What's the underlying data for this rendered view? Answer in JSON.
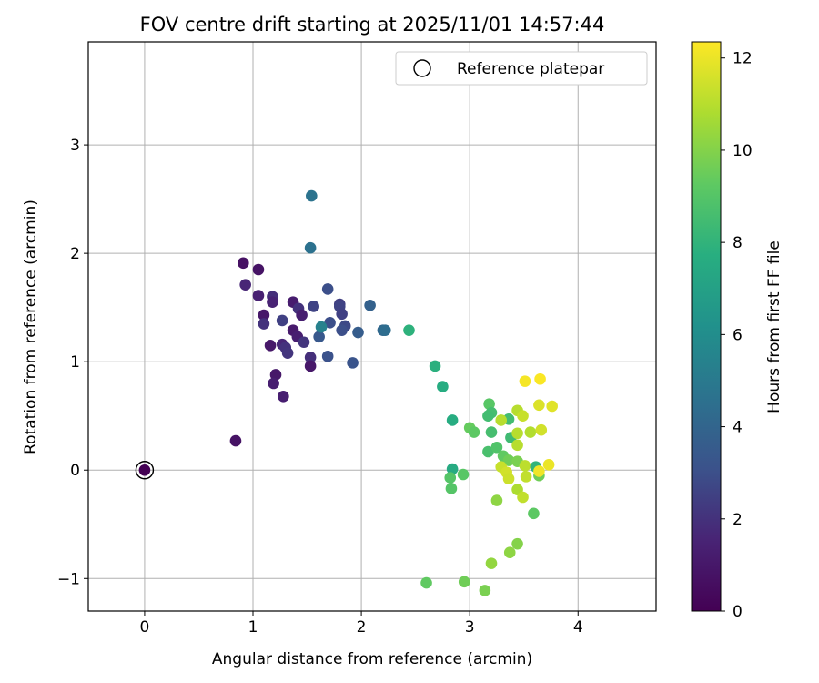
{
  "chart_data": {
    "type": "scatter",
    "title": "FOV centre drift starting at 2025/11/01 14:57:44",
    "xlabel": "Angular distance from reference (arcmin)",
    "ylabel": "Rotation from reference (arcmin)",
    "xlim": [
      -0.52,
      4.72
    ],
    "ylim": [
      -1.3,
      3.95
    ],
    "xticks": [
      0,
      1,
      2,
      3,
      4
    ],
    "xtick_labels": [
      "0",
      "1",
      "2",
      "3",
      "4"
    ],
    "yticks": [
      -1,
      0,
      1,
      2,
      3
    ],
    "ytick_labels": [
      "−1",
      "0",
      "1",
      "2",
      "3"
    ],
    "grid": true,
    "legend": {
      "location": "top-right",
      "entries": [
        "Reference platepar"
      ]
    },
    "colorbar": {
      "label": "Hours from first FF file",
      "colormap": "viridis",
      "range": [
        0,
        12.35
      ],
      "ticks": [
        0,
        2,
        4,
        6,
        8,
        10,
        12
      ],
      "tick_labels": [
        "0",
        "2",
        "4",
        "6",
        "8",
        "10",
        "12"
      ]
    },
    "reference_point": {
      "x": 0,
      "y": 0,
      "hours": 0
    },
    "points": [
      {
        "x": 0.91,
        "y": 1.91,
        "h": 0.7
      },
      {
        "x": 1.05,
        "y": 1.85,
        "h": 0.8
      },
      {
        "x": 0.93,
        "y": 1.71,
        "h": 1.6
      },
      {
        "x": 1.05,
        "y": 1.61,
        "h": 1.4
      },
      {
        "x": 1.18,
        "y": 1.6,
        "h": 1.9
      },
      {
        "x": 1.18,
        "y": 1.55,
        "h": 1.5
      },
      {
        "x": 1.1,
        "y": 1.43,
        "h": 1.0
      },
      {
        "x": 1.1,
        "y": 1.35,
        "h": 2.0
      },
      {
        "x": 1.37,
        "y": 1.55,
        "h": 1.2
      },
      {
        "x": 1.42,
        "y": 1.49,
        "h": 2.0
      },
      {
        "x": 1.45,
        "y": 1.43,
        "h": 1.3
      },
      {
        "x": 1.27,
        "y": 1.38,
        "h": 2.5
      },
      {
        "x": 1.37,
        "y": 1.29,
        "h": 1.1
      },
      {
        "x": 1.41,
        "y": 1.23,
        "h": 1.3
      },
      {
        "x": 1.47,
        "y": 1.18,
        "h": 2.1
      },
      {
        "x": 1.16,
        "y": 1.15,
        "h": 1.0
      },
      {
        "x": 1.27,
        "y": 1.16,
        "h": 1.6
      },
      {
        "x": 1.3,
        "y": 1.13,
        "h": 2.0
      },
      {
        "x": 1.32,
        "y": 1.08,
        "h": 2.1
      },
      {
        "x": 1.53,
        "y": 1.04,
        "h": 1.9
      },
      {
        "x": 1.53,
        "y": 0.96,
        "h": 1.0
      },
      {
        "x": 1.21,
        "y": 0.88,
        "h": 1.0
      },
      {
        "x": 1.19,
        "y": 0.8,
        "h": 1.3
      },
      {
        "x": 1.28,
        "y": 0.68,
        "h": 1.3
      },
      {
        "x": 0.84,
        "y": 0.27,
        "h": 0.8
      },
      {
        "x": 1.56,
        "y": 1.51,
        "h": 2.6
      },
      {
        "x": 1.69,
        "y": 1.67,
        "h": 3.0
      },
      {
        "x": 1.8,
        "y": 1.53,
        "h": 2.4
      },
      {
        "x": 1.8,
        "y": 1.51,
        "h": 2.6
      },
      {
        "x": 1.82,
        "y": 1.44,
        "h": 2.5
      },
      {
        "x": 1.71,
        "y": 1.36,
        "h": 3.0
      },
      {
        "x": 1.85,
        "y": 1.33,
        "h": 2.8
      },
      {
        "x": 1.82,
        "y": 1.29,
        "h": 3.0
      },
      {
        "x": 1.61,
        "y": 1.23,
        "h": 3.4
      },
      {
        "x": 1.69,
        "y": 1.05,
        "h": 3.1
      },
      {
        "x": 1.92,
        "y": 0.99,
        "h": 3.2
      },
      {
        "x": 1.97,
        "y": 1.27,
        "h": 3.6
      },
      {
        "x": 2.08,
        "y": 1.52,
        "h": 3.8
      },
      {
        "x": 2.2,
        "y": 1.29,
        "h": 4.1
      },
      {
        "x": 2.22,
        "y": 1.29,
        "h": 4.4
      },
      {
        "x": 1.63,
        "y": 1.32,
        "h": 5.4
      },
      {
        "x": 1.53,
        "y": 2.05,
        "h": 4.6
      },
      {
        "x": 1.54,
        "y": 2.53,
        "h": 4.7
      },
      {
        "x": 2.44,
        "y": 1.29,
        "h": 7.9
      },
      {
        "x": 2.68,
        "y": 0.96,
        "h": 7.8
      },
      {
        "x": 2.75,
        "y": 0.77,
        "h": 7.6
      },
      {
        "x": 2.84,
        "y": 0.46,
        "h": 7.6
      },
      {
        "x": 2.84,
        "y": 0.01,
        "h": 7.5
      },
      {
        "x": 2.82,
        "y": -0.07,
        "h": 9.0
      },
      {
        "x": 2.83,
        "y": -0.17,
        "h": 9.0
      },
      {
        "x": 2.94,
        "y": -0.04,
        "h": 9.1
      },
      {
        "x": 3.0,
        "y": 0.39,
        "h": 9.4
      },
      {
        "x": 3.04,
        "y": 0.35,
        "h": 9.2
      },
      {
        "x": 3.18,
        "y": 0.61,
        "h": 9.1
      },
      {
        "x": 3.2,
        "y": 0.53,
        "h": 8.6
      },
      {
        "x": 3.17,
        "y": 0.5,
        "h": 8.5
      },
      {
        "x": 3.2,
        "y": 0.35,
        "h": 8.6
      },
      {
        "x": 3.17,
        "y": 0.17,
        "h": 8.7
      },
      {
        "x": 3.36,
        "y": 0.47,
        "h": 8.5
      },
      {
        "x": 3.38,
        "y": 0.3,
        "h": 8.4
      },
      {
        "x": 3.25,
        "y": 0.21,
        "h": 8.9
      },
      {
        "x": 3.31,
        "y": 0.13,
        "h": 9.3
      },
      {
        "x": 3.36,
        "y": 0.09,
        "h": 9.6
      },
      {
        "x": 3.44,
        "y": 0.08,
        "h": 9.8
      },
      {
        "x": 3.29,
        "y": 0.46,
        "h": 11.0
      },
      {
        "x": 3.44,
        "y": 0.55,
        "h": 11.0
      },
      {
        "x": 3.49,
        "y": 0.5,
        "h": 11.3
      },
      {
        "x": 3.44,
        "y": 0.34,
        "h": 11.0
      },
      {
        "x": 3.56,
        "y": 0.35,
        "h": 10.9
      },
      {
        "x": 3.44,
        "y": 0.23,
        "h": 11.0
      },
      {
        "x": 3.51,
        "y": 0.04,
        "h": 11.1
      },
      {
        "x": 3.29,
        "y": 0.03,
        "h": 11.3
      },
      {
        "x": 3.34,
        "y": -0.02,
        "h": 11.5
      },
      {
        "x": 3.36,
        "y": -0.08,
        "h": 11.4
      },
      {
        "x": 3.52,
        "y": -0.06,
        "h": 11.2
      },
      {
        "x": 3.44,
        "y": -0.18,
        "h": 10.8
      },
      {
        "x": 3.49,
        "y": -0.25,
        "h": 11.2
      },
      {
        "x": 3.25,
        "y": -0.28,
        "h": 10.2
      },
      {
        "x": 3.59,
        "y": -0.4,
        "h": 9.2
      },
      {
        "x": 3.44,
        "y": -0.68,
        "h": 10.0
      },
      {
        "x": 3.37,
        "y": -0.76,
        "h": 10.2
      },
      {
        "x": 3.2,
        "y": -0.86,
        "h": 10.3
      },
      {
        "x": 2.6,
        "y": -1.04,
        "h": 9.3
      },
      {
        "x": 2.95,
        "y": -1.03,
        "h": 9.6
      },
      {
        "x": 3.14,
        "y": -1.11,
        "h": 9.8
      },
      {
        "x": 3.51,
        "y": 0.82,
        "h": 12.2
      },
      {
        "x": 3.65,
        "y": 0.84,
        "h": 12.3
      },
      {
        "x": 3.64,
        "y": 0.6,
        "h": 11.7
      },
      {
        "x": 3.76,
        "y": 0.59,
        "h": 11.8
      },
      {
        "x": 3.66,
        "y": 0.37,
        "h": 11.5
      },
      {
        "x": 3.61,
        "y": 0.03,
        "h": 8.0
      },
      {
        "x": 3.64,
        "y": -0.05,
        "h": 9.6
      },
      {
        "x": 3.73,
        "y": 0.05,
        "h": 12.0
      },
      {
        "x": 3.64,
        "y": -0.01,
        "h": 12.1
      }
    ]
  }
}
